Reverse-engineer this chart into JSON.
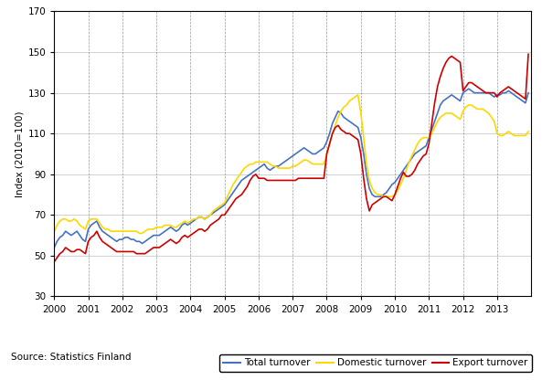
{
  "ylabel": "Index (2010=100)",
  "source_text": "Source: Statistics Finland",
  "ylim": [
    30,
    170
  ],
  "yticks": [
    30,
    50,
    70,
    90,
    110,
    130,
    150,
    170
  ],
  "year_start": 2000,
  "xtick_years": [
    2000,
    2001,
    2002,
    2003,
    2004,
    2005,
    2006,
    2007,
    2008,
    2009,
    2010,
    2011,
    2012,
    2013
  ],
  "colors": {
    "total": "#4472C4",
    "domestic": "#FFD700",
    "export": "#CC0000"
  },
  "legend_labels": [
    "Total turnover",
    "Domestic turnover",
    "Export turnover"
  ],
  "total_turnover": [
    54,
    57,
    59,
    60,
    62,
    61,
    60,
    61,
    62,
    60,
    58,
    57,
    63,
    65,
    66,
    67,
    64,
    62,
    61,
    60,
    59,
    58,
    57,
    58,
    58,
    59,
    59,
    58,
    58,
    57,
    57,
    56,
    57,
    58,
    59,
    60,
    60,
    60,
    61,
    62,
    63,
    64,
    63,
    62,
    63,
    65,
    66,
    65,
    66,
    67,
    68,
    69,
    69,
    68,
    69,
    70,
    71,
    72,
    73,
    74,
    75,
    77,
    79,
    81,
    83,
    85,
    87,
    88,
    89,
    90,
    91,
    92,
    93,
    94,
    95,
    93,
    92,
    93,
    94,
    94,
    95,
    96,
    97,
    98,
    99,
    100,
    101,
    102,
    103,
    102,
    101,
    100,
    100,
    101,
    102,
    103,
    106,
    110,
    115,
    118,
    121,
    120,
    118,
    117,
    116,
    115,
    114,
    113,
    108,
    100,
    90,
    83,
    80,
    79,
    79,
    79,
    80,
    81,
    83,
    85,
    86,
    88,
    90,
    92,
    94,
    96,
    98,
    100,
    101,
    102,
    103,
    104,
    108,
    112,
    116,
    120,
    124,
    126,
    127,
    128,
    129,
    128,
    127,
    126,
    130,
    131,
    132,
    131,
    130,
    130,
    130,
    130,
    130,
    130,
    129,
    128,
    129,
    129,
    130,
    130,
    131,
    130,
    129,
    128,
    127,
    126,
    125,
    130
  ],
  "domestic_turnover": [
    62,
    65,
    67,
    68,
    68,
    67,
    67,
    68,
    67,
    65,
    64,
    63,
    67,
    68,
    68,
    68,
    66,
    64,
    63,
    63,
    62,
    62,
    62,
    62,
    62,
    62,
    62,
    62,
    62,
    62,
    61,
    61,
    62,
    63,
    63,
    63,
    64,
    64,
    64,
    65,
    65,
    65,
    64,
    64,
    65,
    66,
    67,
    66,
    67,
    68,
    68,
    69,
    69,
    68,
    69,
    70,
    72,
    73,
    74,
    75,
    76,
    79,
    82,
    85,
    87,
    89,
    91,
    93,
    94,
    95,
    95,
    96,
    96,
    96,
    96,
    96,
    95,
    94,
    94,
    93,
    93,
    93,
    93,
    93,
    94,
    94,
    95,
    96,
    97,
    97,
    96,
    95,
    95,
    95,
    95,
    95,
    100,
    105,
    110,
    114,
    118,
    121,
    123,
    124,
    126,
    127,
    128,
    129,
    120,
    108,
    95,
    87,
    83,
    81,
    80,
    80,
    79,
    79,
    79,
    79,
    80,
    82,
    85,
    88,
    92,
    96,
    99,
    102,
    105,
    107,
    108,
    108,
    108,
    110,
    113,
    116,
    118,
    119,
    120,
    120,
    120,
    119,
    118,
    117,
    121,
    123,
    124,
    124,
    123,
    122,
    122,
    122,
    121,
    120,
    118,
    116,
    110,
    109,
    109,
    110,
    111,
    110,
    109,
    109,
    109,
    109,
    109,
    111
  ],
  "export_turnover": [
    47,
    49,
    51,
    52,
    54,
    53,
    52,
    52,
    53,
    53,
    52,
    51,
    57,
    59,
    60,
    62,
    59,
    57,
    56,
    55,
    54,
    53,
    52,
    52,
    52,
    52,
    52,
    52,
    52,
    51,
    51,
    51,
    51,
    52,
    53,
    54,
    54,
    54,
    55,
    56,
    57,
    58,
    57,
    56,
    57,
    59,
    60,
    59,
    60,
    61,
    62,
    63,
    63,
    62,
    63,
    65,
    66,
    67,
    68,
    70,
    70,
    72,
    74,
    76,
    78,
    79,
    80,
    82,
    84,
    87,
    89,
    90,
    88,
    88,
    88,
    87,
    87,
    87,
    87,
    87,
    87,
    87,
    87,
    87,
    87,
    87,
    88,
    88,
    88,
    88,
    88,
    88,
    88,
    88,
    88,
    88,
    100,
    105,
    110,
    113,
    114,
    112,
    111,
    110,
    110,
    109,
    108,
    107,
    100,
    88,
    78,
    72,
    75,
    76,
    77,
    78,
    79,
    79,
    78,
    77,
    80,
    84,
    88,
    91,
    89,
    89,
    90,
    92,
    95,
    97,
    99,
    100,
    105,
    115,
    125,
    133,
    138,
    142,
    145,
    147,
    148,
    147,
    146,
    145,
    131,
    133,
    135,
    135,
    134,
    133,
    132,
    131,
    130,
    130,
    130,
    130,
    128,
    130,
    131,
    132,
    133,
    132,
    131,
    130,
    129,
    128,
    127,
    149
  ]
}
